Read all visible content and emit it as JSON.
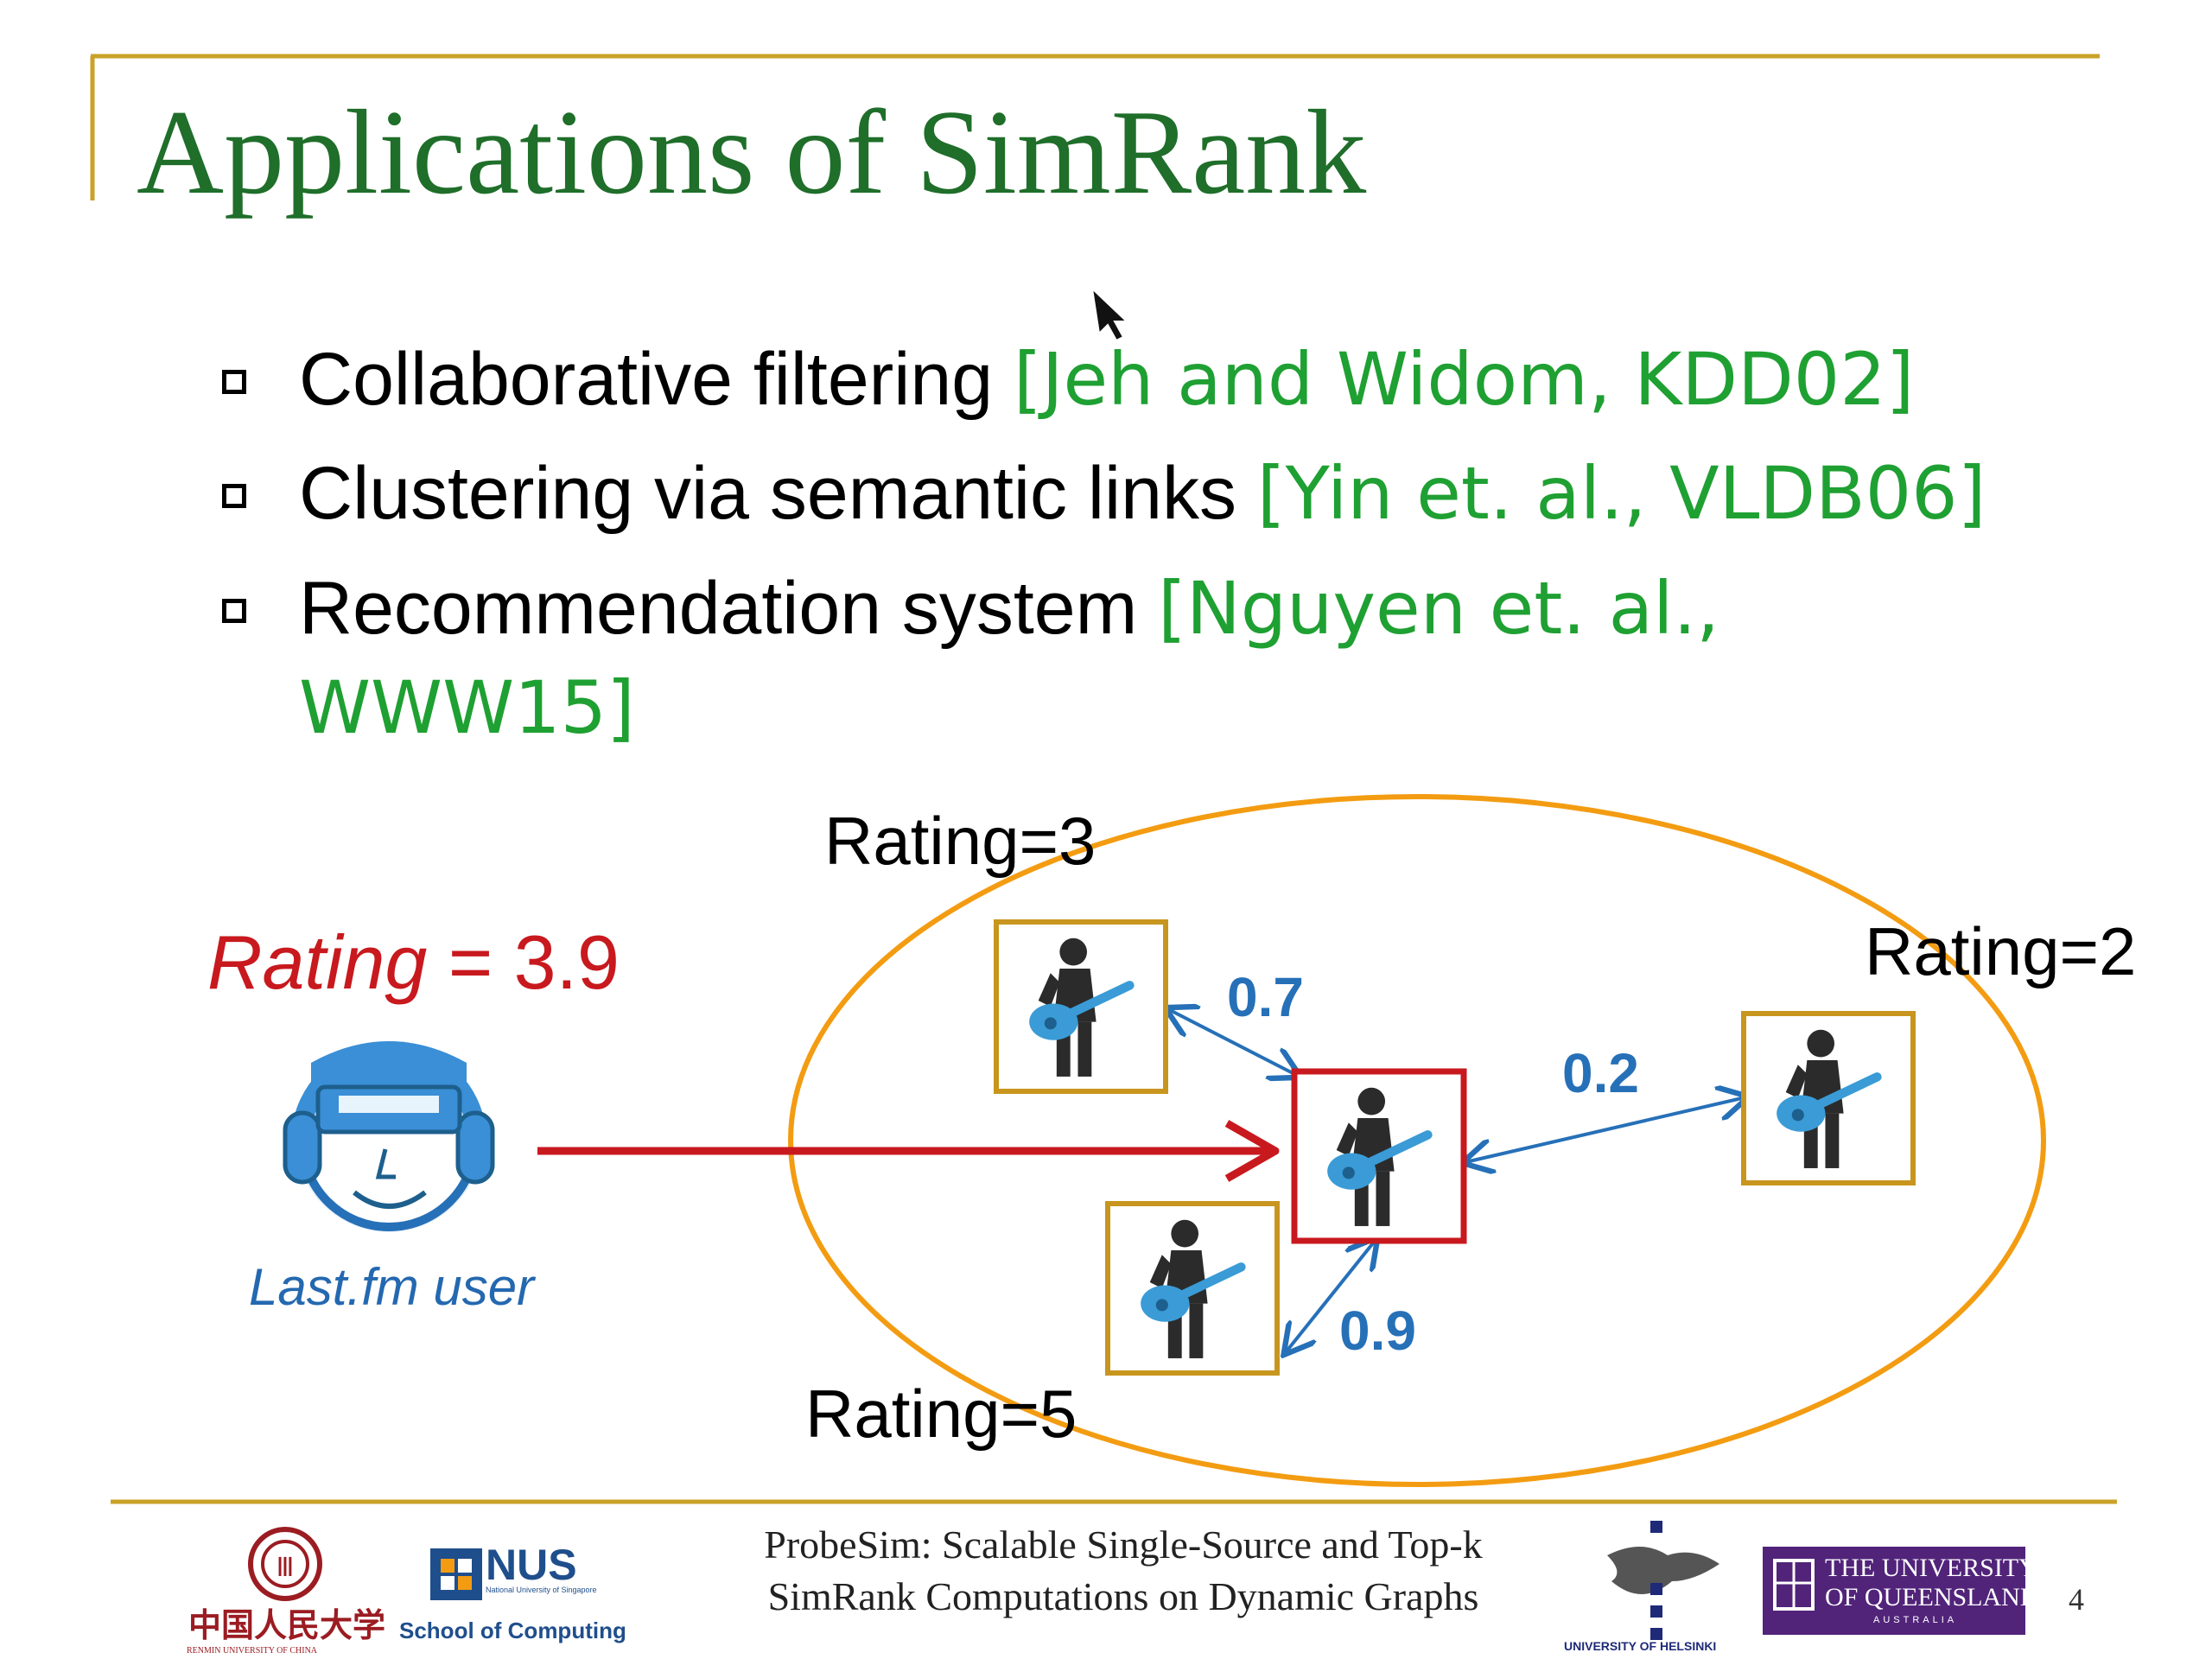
{
  "slide": {
    "title": "Applications of SimRank",
    "bullets": [
      {
        "text": "Collaborative filtering ",
        "citation": "[Jeh and Widom, KDD02]"
      },
      {
        "text": "Clustering via semantic links ",
        "citation": "[Yin et. al., VLDB06]"
      },
      {
        "text": "Recommendation system ",
        "citation": "[Nguyen et. al.,",
        "citation_cont": "WWW15]"
      }
    ]
  },
  "diagram": {
    "user_rating": {
      "word": "Rating",
      "rest": " = 3.9"
    },
    "user_caption": "Last.fm user",
    "nodes": [
      {
        "rating_label": "Rating=3",
        "weight": "0.7"
      },
      {
        "rating_label": "Rating=2",
        "weight": "0.2"
      },
      {
        "rating_label": "Rating=5",
        "weight": "0.9"
      }
    ],
    "colors": {
      "ellipse": "#f39c12",
      "center_box": "#c8191e",
      "node_box": "#c8961e",
      "edge": "#2670b8",
      "arrow": "#c8191e",
      "title": "#1f6e2a",
      "citation": "#1fa032"
    }
  },
  "footer": {
    "title_line1": "ProbeSim: Scalable Single-Source and Top-k",
    "title_line2": "SimRank Computations on Dynamic Graphs",
    "page_number": "4",
    "logos": {
      "renmin_cn": "中国人民大学",
      "renmin_en": "RENMIN UNIVERSITY OF CHINA",
      "nus": "NUS",
      "nus_sub": "National University of Singapore",
      "nus_school": "School of Computing",
      "helsinki": "UNIVERSITY OF HELSINKI",
      "uq_line1": "THE UNIVERSITY",
      "uq_line2": "OF QUEENSLAND",
      "uq_line3": "AUSTRALIA"
    }
  }
}
